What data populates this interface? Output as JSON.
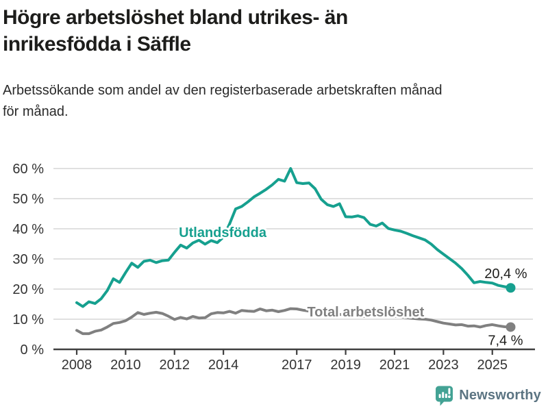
{
  "header": {
    "title_lines": [
      "Högre arbetslöshet bland utrikes- än",
      "inrikesfödda i Säffle"
    ],
    "subtitle_lines": [
      "Arbetssökande som andel av den registerbaserade arbetskraften månad",
      "för månad."
    ]
  },
  "footer": {
    "brand": "Newsworthy"
  },
  "colors": {
    "accent_teal": "#16a08f",
    "series_gray": "#808080",
    "grid": "#e0e0e0",
    "axis": "#3f3f3f",
    "tick_text": "#333333",
    "value_text": "#1d1d1b",
    "brand_text": "#5b7482",
    "logo_teal": "#43a294"
  },
  "chart_data": {
    "type": "line",
    "title": "Högre arbetslöshet bland utrikes- än inrikesfödda i Säffle",
    "subtitle": "Arbetssökande som andel av den registerbaserade arbetskraften månad för månad.",
    "x_start": 2008,
    "x_step": 0.25,
    "x_end": 2025.75,
    "ylim": [
      0,
      62
    ],
    "grid": true,
    "legend_position": "inline-labels",
    "x_ticks": {
      "values": [
        2008,
        2010,
        2012,
        2014,
        2017,
        2019,
        2021,
        2023,
        2025
      ],
      "labels": [
        "2008",
        "2010",
        "2012",
        "2014",
        "2017",
        "2019",
        "2021",
        "2023",
        "2025"
      ]
    },
    "y_ticks": {
      "values": [
        0,
        10,
        20,
        30,
        40,
        50,
        60
      ],
      "labels": [
        "0 %",
        "10 %",
        "20 %",
        "30 %",
        "40 %",
        "50 %",
        "60 %"
      ]
    },
    "series": [
      {
        "name": "Utlandsfödda",
        "color": "#16a08f",
        "end_label": "20,4 %",
        "end_value": 20.4,
        "label_anchor": {
          "x": 2013.97,
          "y": 37.3
        },
        "values": [
          15.5,
          14.2,
          15.8,
          15.2,
          16.8,
          19.5,
          23.4,
          22.2,
          25.5,
          28.6,
          27.2,
          29.2,
          29.6,
          28.8,
          29.4,
          29.6,
          32.2,
          34.6,
          33.6,
          35.3,
          36.2,
          34.9,
          36.1,
          35.4,
          37.2,
          41.6,
          46.6,
          47.4,
          48.9,
          50.6,
          51.8,
          53.1,
          54.6,
          56.4,
          55.8,
          60.0,
          55.3,
          55.0,
          55.2,
          53.3,
          49.8,
          48.0,
          47.4,
          48.3,
          44.0,
          43.9,
          44.3,
          43.7,
          41.5,
          40.9,
          41.9,
          40.1,
          39.6,
          39.2,
          38.5,
          37.7,
          37.0,
          36.3,
          34.9,
          33.1,
          31.6,
          30.1,
          28.6,
          26.8,
          24.6,
          22.1,
          22.5,
          22.2,
          22.0,
          21.2,
          20.8,
          20.4
        ]
      },
      {
        "name": "Total arbetslöshet",
        "color": "#808080",
        "end_label": "7,4 %",
        "end_value": 7.4,
        "label_anchor": {
          "x": 2019.82,
          "y": 10.9
        },
        "values": [
          6.3,
          5.2,
          5.2,
          6.0,
          6.4,
          7.4,
          8.6,
          8.9,
          9.5,
          10.7,
          12.2,
          11.6,
          12.0,
          12.3,
          11.9,
          11.0,
          9.9,
          10.6,
          10.1,
          10.9,
          10.4,
          10.5,
          11.8,
          12.2,
          12.1,
          12.6,
          12.0,
          12.9,
          12.7,
          12.6,
          13.4,
          12.8,
          13.0,
          12.5,
          12.9,
          13.5,
          13.4,
          13.0,
          12.7,
          12.5,
          12.2,
          12.0,
          11.8,
          11.6,
          11.4,
          11.2,
          11.0,
          10.9,
          11.2,
          11.8,
          11.6,
          11.3,
          11.0,
          10.8,
          10.5,
          10.3,
          10.1,
          10.0,
          9.7,
          9.2,
          8.7,
          8.4,
          8.1,
          8.2,
          7.7,
          7.8,
          7.4,
          7.9,
          8.2,
          7.8,
          7.5,
          7.4
        ]
      }
    ]
  }
}
